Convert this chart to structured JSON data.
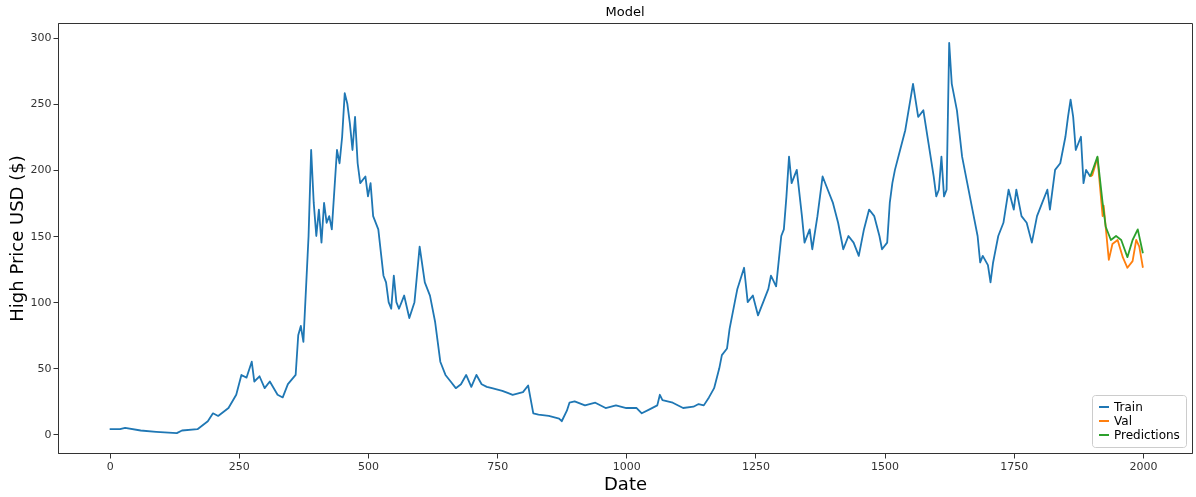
{
  "chart_data": {
    "type": "line",
    "title": "Model",
    "xlabel": "Date",
    "ylabel": "High Price USD ($)",
    "xlim": [
      -100,
      2095
    ],
    "ylim": [
      -14,
      311
    ],
    "xticks": [
      0,
      250,
      500,
      750,
      1000,
      1250,
      1500,
      1750,
      2000
    ],
    "yticks": [
      0,
      50,
      100,
      150,
      200,
      250,
      300
    ],
    "grid": false,
    "legend": "bottom right",
    "line_style": "solid",
    "marker": "none",
    "series": [
      {
        "name": "Train",
        "color": "#1f77b4",
        "x": [
          0,
          20,
          30,
          60,
          90,
          130,
          140,
          170,
          190,
          200,
          210,
          230,
          245,
          255,
          265,
          275,
          280,
          290,
          300,
          310,
          325,
          335,
          345,
          360,
          365,
          370,
          375,
          385,
          390,
          395,
          400,
          405,
          410,
          415,
          420,
          425,
          430,
          440,
          445,
          450,
          455,
          460,
          465,
          470,
          475,
          480,
          485,
          495,
          500,
          505,
          510,
          520,
          530,
          535,
          540,
          545,
          550,
          555,
          560,
          570,
          580,
          590,
          600,
          610,
          620,
          630,
          635,
          640,
          650,
          660,
          670,
          680,
          690,
          700,
          710,
          720,
          730,
          740,
          760,
          780,
          800,
          810,
          820,
          830,
          850,
          870,
          875,
          885,
          890,
          900,
          920,
          940,
          960,
          980,
          1000,
          1020,
          1030,
          1045,
          1060,
          1065,
          1070,
          1090,
          1110,
          1130,
          1140,
          1150,
          1160,
          1170,
          1180,
          1185,
          1195,
          1200,
          1210,
          1215,
          1228,
          1235,
          1245,
          1255,
          1265,
          1275,
          1280,
          1290,
          1300,
          1305,
          1310,
          1315,
          1320,
          1330,
          1340,
          1345,
          1355,
          1360,
          1370,
          1380,
          1390,
          1400,
          1410,
          1420,
          1430,
          1440,
          1450,
          1460,
          1470,
          1480,
          1490,
          1495,
          1505,
          1510,
          1515,
          1520,
          1530,
          1540,
          1555,
          1565,
          1575,
          1585,
          1595,
          1600,
          1605,
          1610,
          1615,
          1620,
          1625,
          1630,
          1640,
          1650,
          1660,
          1670,
          1680,
          1685,
          1690,
          1700,
          1705,
          1710,
          1720,
          1730,
          1740,
          1750,
          1755,
          1765,
          1775,
          1785,
          1795,
          1805,
          1815,
          1820,
          1830,
          1840,
          1850,
          1855,
          1860,
          1865,
          1870,
          1880,
          1885,
          1890,
          1898
        ],
        "values": [
          4,
          4,
          5,
          3,
          2,
          1,
          3,
          4,
          10,
          16,
          14,
          20,
          30,
          45,
          43,
          55,
          40,
          44,
          35,
          40,
          30,
          28,
          38,
          45,
          75,
          82,
          70,
          150,
          215,
          175,
          150,
          170,
          145,
          175,
          160,
          165,
          155,
          215,
          205,
          225,
          258,
          250,
          235,
          215,
          240,
          205,
          190,
          195,
          180,
          190,
          165,
          155,
          120,
          115,
          100,
          95,
          120,
          100,
          95,
          105,
          88,
          100,
          142,
          115,
          105,
          85,
          70,
          55,
          45,
          40,
          35,
          38,
          45,
          36,
          45,
          38,
          36,
          35,
          33,
          30,
          32,
          37,
          16,
          15,
          14,
          12,
          10,
          18,
          24,
          25,
          22,
          24,
          20,
          22,
          20,
          20,
          16,
          19,
          22,
          30,
          26,
          24,
          20,
          21,
          23,
          22,
          28,
          35,
          50,
          60,
          65,
          80,
          100,
          110,
          126,
          100,
          105,
          90,
          100,
          110,
          120,
          112,
          150,
          155,
          180,
          210,
          190,
          200,
          165,
          145,
          155,
          140,
          165,
          195,
          185,
          175,
          160,
          140,
          150,
          145,
          135,
          155,
          170,
          165,
          150,
          140,
          145,
          175,
          190,
          200,
          215,
          230,
          265,
          240,
          245,
          220,
          195,
          180,
          185,
          210,
          180,
          185,
          296,
          265,
          245,
          210,
          190,
          170,
          150,
          130,
          135,
          128,
          115,
          130,
          150,
          160,
          185,
          170,
          185,
          165,
          160,
          145,
          165,
          175,
          185,
          170,
          200,
          205,
          225,
          240,
          253,
          240,
          215,
          225,
          190,
          200,
          195
        ]
      },
      {
        "name": "Val",
        "color": "#ff7f0e",
        "x": [
          1898,
          1902,
          1912,
          1922,
          1924,
          1934,
          1941,
          1951,
          1961,
          1970,
          1980,
          1987,
          1993,
          2000
        ],
        "values": [
          195,
          196,
          209,
          165,
          173,
          132,
          144,
          147,
          134,
          126,
          131,
          147,
          142,
          126
        ]
      },
      {
        "name": "Predictions",
        "color": "#2ca02c",
        "x": [
          1898,
          1902,
          1912,
          1922,
          1928,
          1938,
          1948,
          1958,
          1970,
          1980,
          1990,
          2000
        ],
        "values": [
          195,
          199,
          210,
          175,
          157,
          147,
          150,
          147,
          134,
          147,
          155,
          137
        ]
      }
    ]
  }
}
